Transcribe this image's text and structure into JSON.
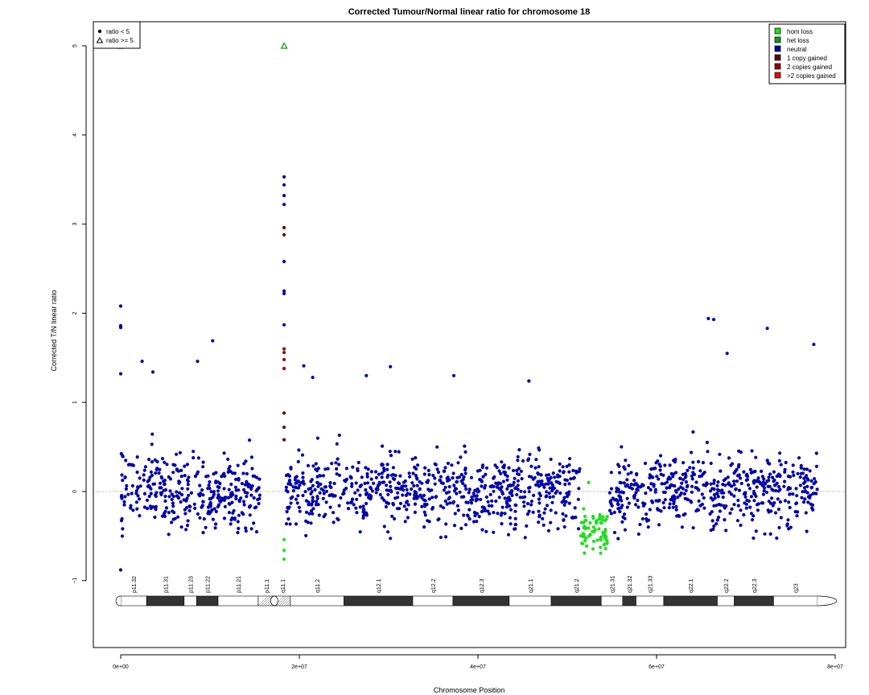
{
  "chart_data": {
    "type": "scatter",
    "title": "Corrected Tumour/Normal linear ratio for chromosome  18",
    "xlabel": "Chromosome Position",
    "ylabel": "Corrected T/N linear ratio",
    "xlim": [
      0,
      80000000
    ],
    "ylim": [
      -1.75,
      5.35
    ],
    "x_ticks": [
      {
        "value": 0,
        "label": "0e+00"
      },
      {
        "value": 20000000,
        "label": "2e+07"
      },
      {
        "value": 40000000,
        "label": "4e+07"
      },
      {
        "value": 60000000,
        "label": "6e+07"
      },
      {
        "value": 80000000,
        "label": "8e+07"
      }
    ],
    "y_ticks": [
      {
        "value": -1,
        "label": "−1"
      },
      {
        "value": 0,
        "label": "0"
      },
      {
        "value": 1,
        "label": "1"
      },
      {
        "value": 2,
        "label": "2"
      },
      {
        "value": 3,
        "label": "3"
      },
      {
        "value": 4,
        "label": "4"
      },
      {
        "value": 5,
        "label": "5"
      }
    ],
    "reference_line": 0,
    "shape_legend": [
      {
        "label": "ratio < 5",
        "symbol": "dot"
      },
      {
        "label": "ratio >= 5",
        "symbol": "triangle"
      }
    ],
    "status_legend": [
      {
        "label": "hom loss",
        "color": "#22dd22"
      },
      {
        "label": "het loss",
        "color": "#119911"
      },
      {
        "label": "neutral",
        "color": "#0000aa"
      },
      {
        "label": "1 copy gained",
        "color": "#660000"
      },
      {
        "label": "2 copies gained",
        "color": "#990000"
      },
      {
        "label": ">2 copies gained",
        "color": "#dd1111"
      }
    ],
    "segments": [
      {
        "status": "neutral",
        "x_start": 0,
        "x_end": 15600000,
        "noise_sd": 0.2
      },
      {
        "status": "neutral",
        "x_start": 18500000,
        "x_end": 51400000,
        "noise_sd": 0.2
      },
      {
        "status": "hom loss",
        "x_start": 51500000,
        "x_end": 54600000,
        "mean": -0.45,
        "noise_sd": 0.12
      },
      {
        "status": "neutral",
        "x_start": 54700000,
        "x_end": 78000000,
        "noise_sd": 0.2
      }
    ],
    "outliers": [
      {
        "x": 0,
        "y": 2.08,
        "status": "neutral"
      },
      {
        "x": 0,
        "y": 1.86,
        "status": "neutral"
      },
      {
        "x": 0,
        "y": 1.84,
        "status": "neutral"
      },
      {
        "x": 0,
        "y": 1.32,
        "status": "neutral"
      },
      {
        "x": 0,
        "y": -0.88,
        "status": "neutral"
      },
      {
        "x": 2400000,
        "y": 1.46,
        "status": "neutral"
      },
      {
        "x": 3600000,
        "y": 1.34,
        "status": "neutral"
      },
      {
        "x": 8600000,
        "y": 1.46,
        "status": "neutral"
      },
      {
        "x": 10300000,
        "y": 1.69,
        "status": "neutral"
      },
      {
        "x": 18300000,
        "y": 3.53,
        "status": "neutral"
      },
      {
        "x": 18300000,
        "y": 3.44,
        "status": "neutral"
      },
      {
        "x": 18300000,
        "y": 3.32,
        "status": "neutral"
      },
      {
        "x": 18300000,
        "y": 3.22,
        "status": "neutral"
      },
      {
        "x": 18300000,
        "y": 2.96,
        "status": "1 copy gained"
      },
      {
        "x": 18300000,
        "y": 2.88,
        "status": "1 copy gained"
      },
      {
        "x": 18300000,
        "y": 2.58,
        "status": "neutral"
      },
      {
        "x": 18300000,
        "y": 2.25,
        "status": "neutral"
      },
      {
        "x": 18300000,
        "y": 2.22,
        "status": "neutral"
      },
      {
        "x": 18300000,
        "y": 1.87,
        "status": "neutral"
      },
      {
        "x": 18300000,
        "y": 1.6,
        "status": "2 copies gained"
      },
      {
        "x": 18300000,
        "y": 1.56,
        "status": "2 copies gained"
      },
      {
        "x": 18300000,
        "y": 1.48,
        "status": "2 copies gained"
      },
      {
        "x": 18300000,
        "y": 1.38,
        "status": "2 copies gained"
      },
      {
        "x": 18300000,
        "y": 0.88,
        "status": "1 copy gained"
      },
      {
        "x": 18300000,
        "y": 0.72,
        "status": "1 copy gained"
      },
      {
        "x": 18300000,
        "y": 0.58,
        "status": "1 copy gained"
      },
      {
        "x": 18300000,
        "y": -0.54,
        "status": "hom loss"
      },
      {
        "x": 18300000,
        "y": -0.66,
        "status": "hom loss"
      },
      {
        "x": 18300000,
        "y": -0.76,
        "status": "hom loss"
      },
      {
        "x": 20500000,
        "y": 1.41,
        "status": "neutral"
      },
      {
        "x": 21500000,
        "y": 1.28,
        "status": "neutral"
      },
      {
        "x": 27500000,
        "y": 1.3,
        "status": "neutral"
      },
      {
        "x": 30200000,
        "y": 1.4,
        "status": "neutral"
      },
      {
        "x": 37300000,
        "y": 1.3,
        "status": "neutral"
      },
      {
        "x": 45700000,
        "y": 1.24,
        "status": "neutral"
      },
      {
        "x": 65800000,
        "y": 1.94,
        "status": "neutral"
      },
      {
        "x": 66400000,
        "y": 1.93,
        "status": "neutral"
      },
      {
        "x": 67900000,
        "y": 1.55,
        "status": "neutral"
      },
      {
        "x": 72400000,
        "y": 1.83,
        "status": "neutral"
      },
      {
        "x": 77600000,
        "y": 1.65,
        "status": "neutral"
      },
      {
        "x": 52400000,
        "y": 0.1,
        "status": "hom loss"
      }
    ],
    "high_points": [
      {
        "x": 0,
        "y": 5,
        "status": "neutral"
      },
      {
        "x": 18300000,
        "y": 5,
        "status": "het loss"
      }
    ],
    "ideogram": {
      "centromere": 17200000,
      "bands": [
        {
          "name": "p11.32",
          "start": 0,
          "end": 2900000,
          "stain": "gneg"
        },
        {
          "name": "p11.31",
          "start": 2900000,
          "end": 7100000,
          "stain": "gpos"
        },
        {
          "name": "p11.23",
          "start": 7100000,
          "end": 8500000,
          "stain": "gneg"
        },
        {
          "name": "p11.22",
          "start": 8500000,
          "end": 10900000,
          "stain": "gpos"
        },
        {
          "name": "p11.21",
          "start": 10900000,
          "end": 15400000,
          "stain": "gneg"
        },
        {
          "name": "p11.1",
          "start": 15400000,
          "end": 17200000,
          "stain": "acen"
        },
        {
          "name": "q11.1",
          "start": 17200000,
          "end": 19000000,
          "stain": "acen"
        },
        {
          "name": "q11.2",
          "start": 19000000,
          "end": 25000000,
          "stain": "gneg"
        },
        {
          "name": "q12.1",
          "start": 25000000,
          "end": 32700000,
          "stain": "gpos"
        },
        {
          "name": "q12.2",
          "start": 32700000,
          "end": 37200000,
          "stain": "gneg"
        },
        {
          "name": "q12.3",
          "start": 37200000,
          "end": 43500000,
          "stain": "gpos"
        },
        {
          "name": "q21.1",
          "start": 43500000,
          "end": 48200000,
          "stain": "gneg"
        },
        {
          "name": "q21.2",
          "start": 48200000,
          "end": 53800000,
          "stain": "gpos"
        },
        {
          "name": "q21.31",
          "start": 53800000,
          "end": 56200000,
          "stain": "gneg"
        },
        {
          "name": "q21.32",
          "start": 56200000,
          "end": 57700000,
          "stain": "gpos"
        },
        {
          "name": "q21.33",
          "start": 57700000,
          "end": 60800000,
          "stain": "gneg"
        },
        {
          "name": "q22.1",
          "start": 60800000,
          "end": 66800000,
          "stain": "gpos"
        },
        {
          "name": "q22.2",
          "start": 66800000,
          "end": 68700000,
          "stain": "gneg"
        },
        {
          "name": "q22.3",
          "start": 68700000,
          "end": 73100000,
          "stain": "gpos"
        },
        {
          "name": "q23",
          "start": 73100000,
          "end": 78000000,
          "stain": "gneg"
        }
      ]
    }
  }
}
